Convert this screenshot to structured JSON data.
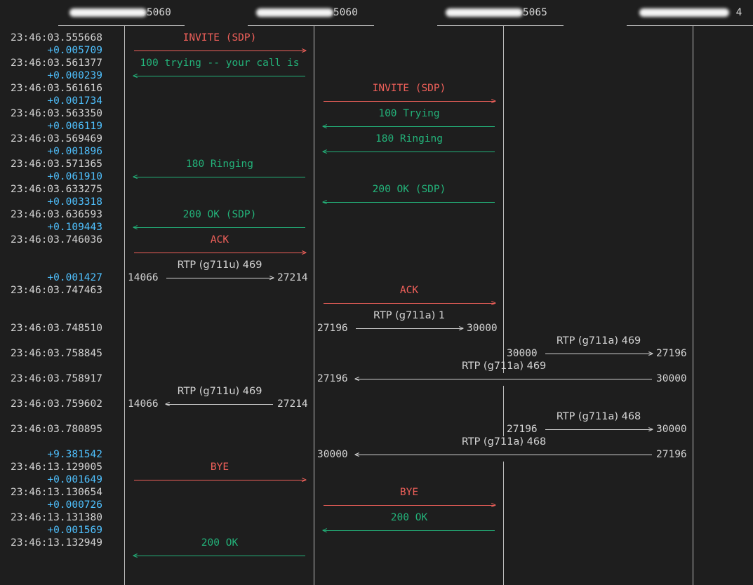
{
  "colors": {
    "background": "#1e1e1e",
    "timestamp": "#d4d4d4",
    "delta": "#4fc1ff",
    "request": "#f0605a",
    "response": "#23b37a",
    "rtp": "#d4d4d4",
    "lane": "#bdbdbd",
    "redaction": "#f4f4f4"
  },
  "participants": [
    {
      "label": "5060",
      "redacted_prefix": true
    },
    {
      "label": "5060",
      "redacted_prefix": true
    },
    {
      "label": "5065",
      "redacted_prefix": true
    },
    {
      "label": "4",
      "redacted_prefix": true
    }
  ],
  "time_rows": [
    {
      "kind": "time",
      "value": "23:46:03.555668"
    },
    {
      "kind": "delta",
      "value": "+0.005709"
    },
    {
      "kind": "time",
      "value": "23:46:03.561377"
    },
    {
      "kind": "delta",
      "value": "+0.000239"
    },
    {
      "kind": "time",
      "value": "23:46:03.561616"
    },
    {
      "kind": "delta",
      "value": "+0.001734"
    },
    {
      "kind": "time",
      "value": "23:46:03.563350"
    },
    {
      "kind": "delta",
      "value": "+0.006119"
    },
    {
      "kind": "time",
      "value": "23:46:03.569469"
    },
    {
      "kind": "delta",
      "value": "+0.001896"
    },
    {
      "kind": "time",
      "value": "23:46:03.571365"
    },
    {
      "kind": "delta",
      "value": "+0.061910"
    },
    {
      "kind": "time",
      "value": "23:46:03.633275"
    },
    {
      "kind": "delta",
      "value": "+0.003318"
    },
    {
      "kind": "time",
      "value": "23:46:03.636593"
    },
    {
      "kind": "delta",
      "value": "+0.109443"
    },
    {
      "kind": "time",
      "value": "23:46:03.746036"
    },
    {
      "kind": "blank",
      "value": ""
    },
    {
      "kind": "blank",
      "value": ""
    },
    {
      "kind": "delta",
      "value": "+0.001427"
    },
    {
      "kind": "time",
      "value": "23:46:03.747463"
    },
    {
      "kind": "blank",
      "value": ""
    },
    {
      "kind": "blank",
      "value": ""
    },
    {
      "kind": "time",
      "value": "23:46:03.748510"
    },
    {
      "kind": "blank",
      "value": ""
    },
    {
      "kind": "time",
      "value": "23:46:03.758845"
    },
    {
      "kind": "blank",
      "value": ""
    },
    {
      "kind": "time",
      "value": "23:46:03.758917"
    },
    {
      "kind": "blank",
      "value": ""
    },
    {
      "kind": "time",
      "value": "23:46:03.759602"
    },
    {
      "kind": "blank",
      "value": ""
    },
    {
      "kind": "time",
      "value": "23:46:03.780895"
    },
    {
      "kind": "blank",
      "value": ""
    },
    {
      "kind": "delta",
      "value": "+9.381542"
    },
    {
      "kind": "time",
      "value": "23:46:13.129005"
    },
    {
      "kind": "delta",
      "value": "+0.001649"
    },
    {
      "kind": "time",
      "value": "23:46:13.130654"
    },
    {
      "kind": "delta",
      "value": "+0.000726"
    },
    {
      "kind": "time",
      "value": "23:46:13.131380"
    },
    {
      "kind": "delta",
      "value": "+0.001569"
    },
    {
      "kind": "time",
      "value": "23:46:13.132949"
    }
  ],
  "messages": [
    {
      "row": 0,
      "from": 0,
      "to": 1,
      "label": "INVITE (SDP)",
      "type": "request"
    },
    {
      "row": 2,
      "from": 1,
      "to": 0,
      "label": "100 trying -- your call is",
      "type": "response"
    },
    {
      "row": 4,
      "from": 1,
      "to": 2,
      "label": "INVITE (SDP)",
      "type": "request"
    },
    {
      "row": 6,
      "from": 2,
      "to": 1,
      "label": "100 Trying",
      "type": "response"
    },
    {
      "row": 8,
      "from": 2,
      "to": 1,
      "label": "180 Ringing",
      "type": "response"
    },
    {
      "row": 10,
      "from": 1,
      "to": 0,
      "label": "180 Ringing",
      "type": "response"
    },
    {
      "row": 12,
      "from": 2,
      "to": 1,
      "label": "200 OK (SDP)",
      "type": "response"
    },
    {
      "row": 14,
      "from": 1,
      "to": 0,
      "label": "200 OK (SDP)",
      "type": "response"
    },
    {
      "row": 16,
      "from": 0,
      "to": 1,
      "label": "ACK",
      "type": "request"
    },
    {
      "row": 20,
      "from": 1,
      "to": 2,
      "label": "ACK",
      "type": "request"
    },
    {
      "row": 34,
      "from": 0,
      "to": 1,
      "label": "BYE",
      "type": "request"
    },
    {
      "row": 36,
      "from": 1,
      "to": 2,
      "label": "BYE",
      "type": "request"
    },
    {
      "row": 38,
      "from": 2,
      "to": 1,
      "label": "200 OK",
      "type": "response"
    },
    {
      "row": 40,
      "from": 1,
      "to": 0,
      "label": "200 OK",
      "type": "response"
    }
  ],
  "rtp_streams": [
    {
      "row": 19,
      "from": 0,
      "to": 1,
      "label": "RTP (g711u) 469",
      "left_port": "14066",
      "right_port": "27214",
      "direction": "right"
    },
    {
      "row": 23,
      "from": 1,
      "to": 2,
      "label": "RTP (g711a) 1",
      "left_port": "27196",
      "right_port": "30000",
      "direction": "right"
    },
    {
      "row": 25,
      "from": 2,
      "to": 3,
      "label": "RTP (g711a) 469",
      "left_port": "30000",
      "right_port": "27196",
      "direction": "right"
    },
    {
      "row": 27,
      "from": 1,
      "to": 3,
      "label": "RTP (g711a) 469",
      "left_port": "27196",
      "right_port": "30000",
      "direction": "left"
    },
    {
      "row": 29,
      "from": 0,
      "to": 1,
      "label": "RTP (g711u) 469",
      "left_port": "14066",
      "right_port": "27214",
      "direction": "left"
    },
    {
      "row": 31,
      "from": 2,
      "to": 3,
      "label": "RTP (g711a) 468",
      "left_port": "27196",
      "right_port": "30000",
      "direction": "right"
    },
    {
      "row": 33,
      "from": 1,
      "to": 3,
      "label": "RTP (g711a) 468",
      "left_port": "30000",
      "right_port": "27196",
      "direction": "left"
    }
  ]
}
